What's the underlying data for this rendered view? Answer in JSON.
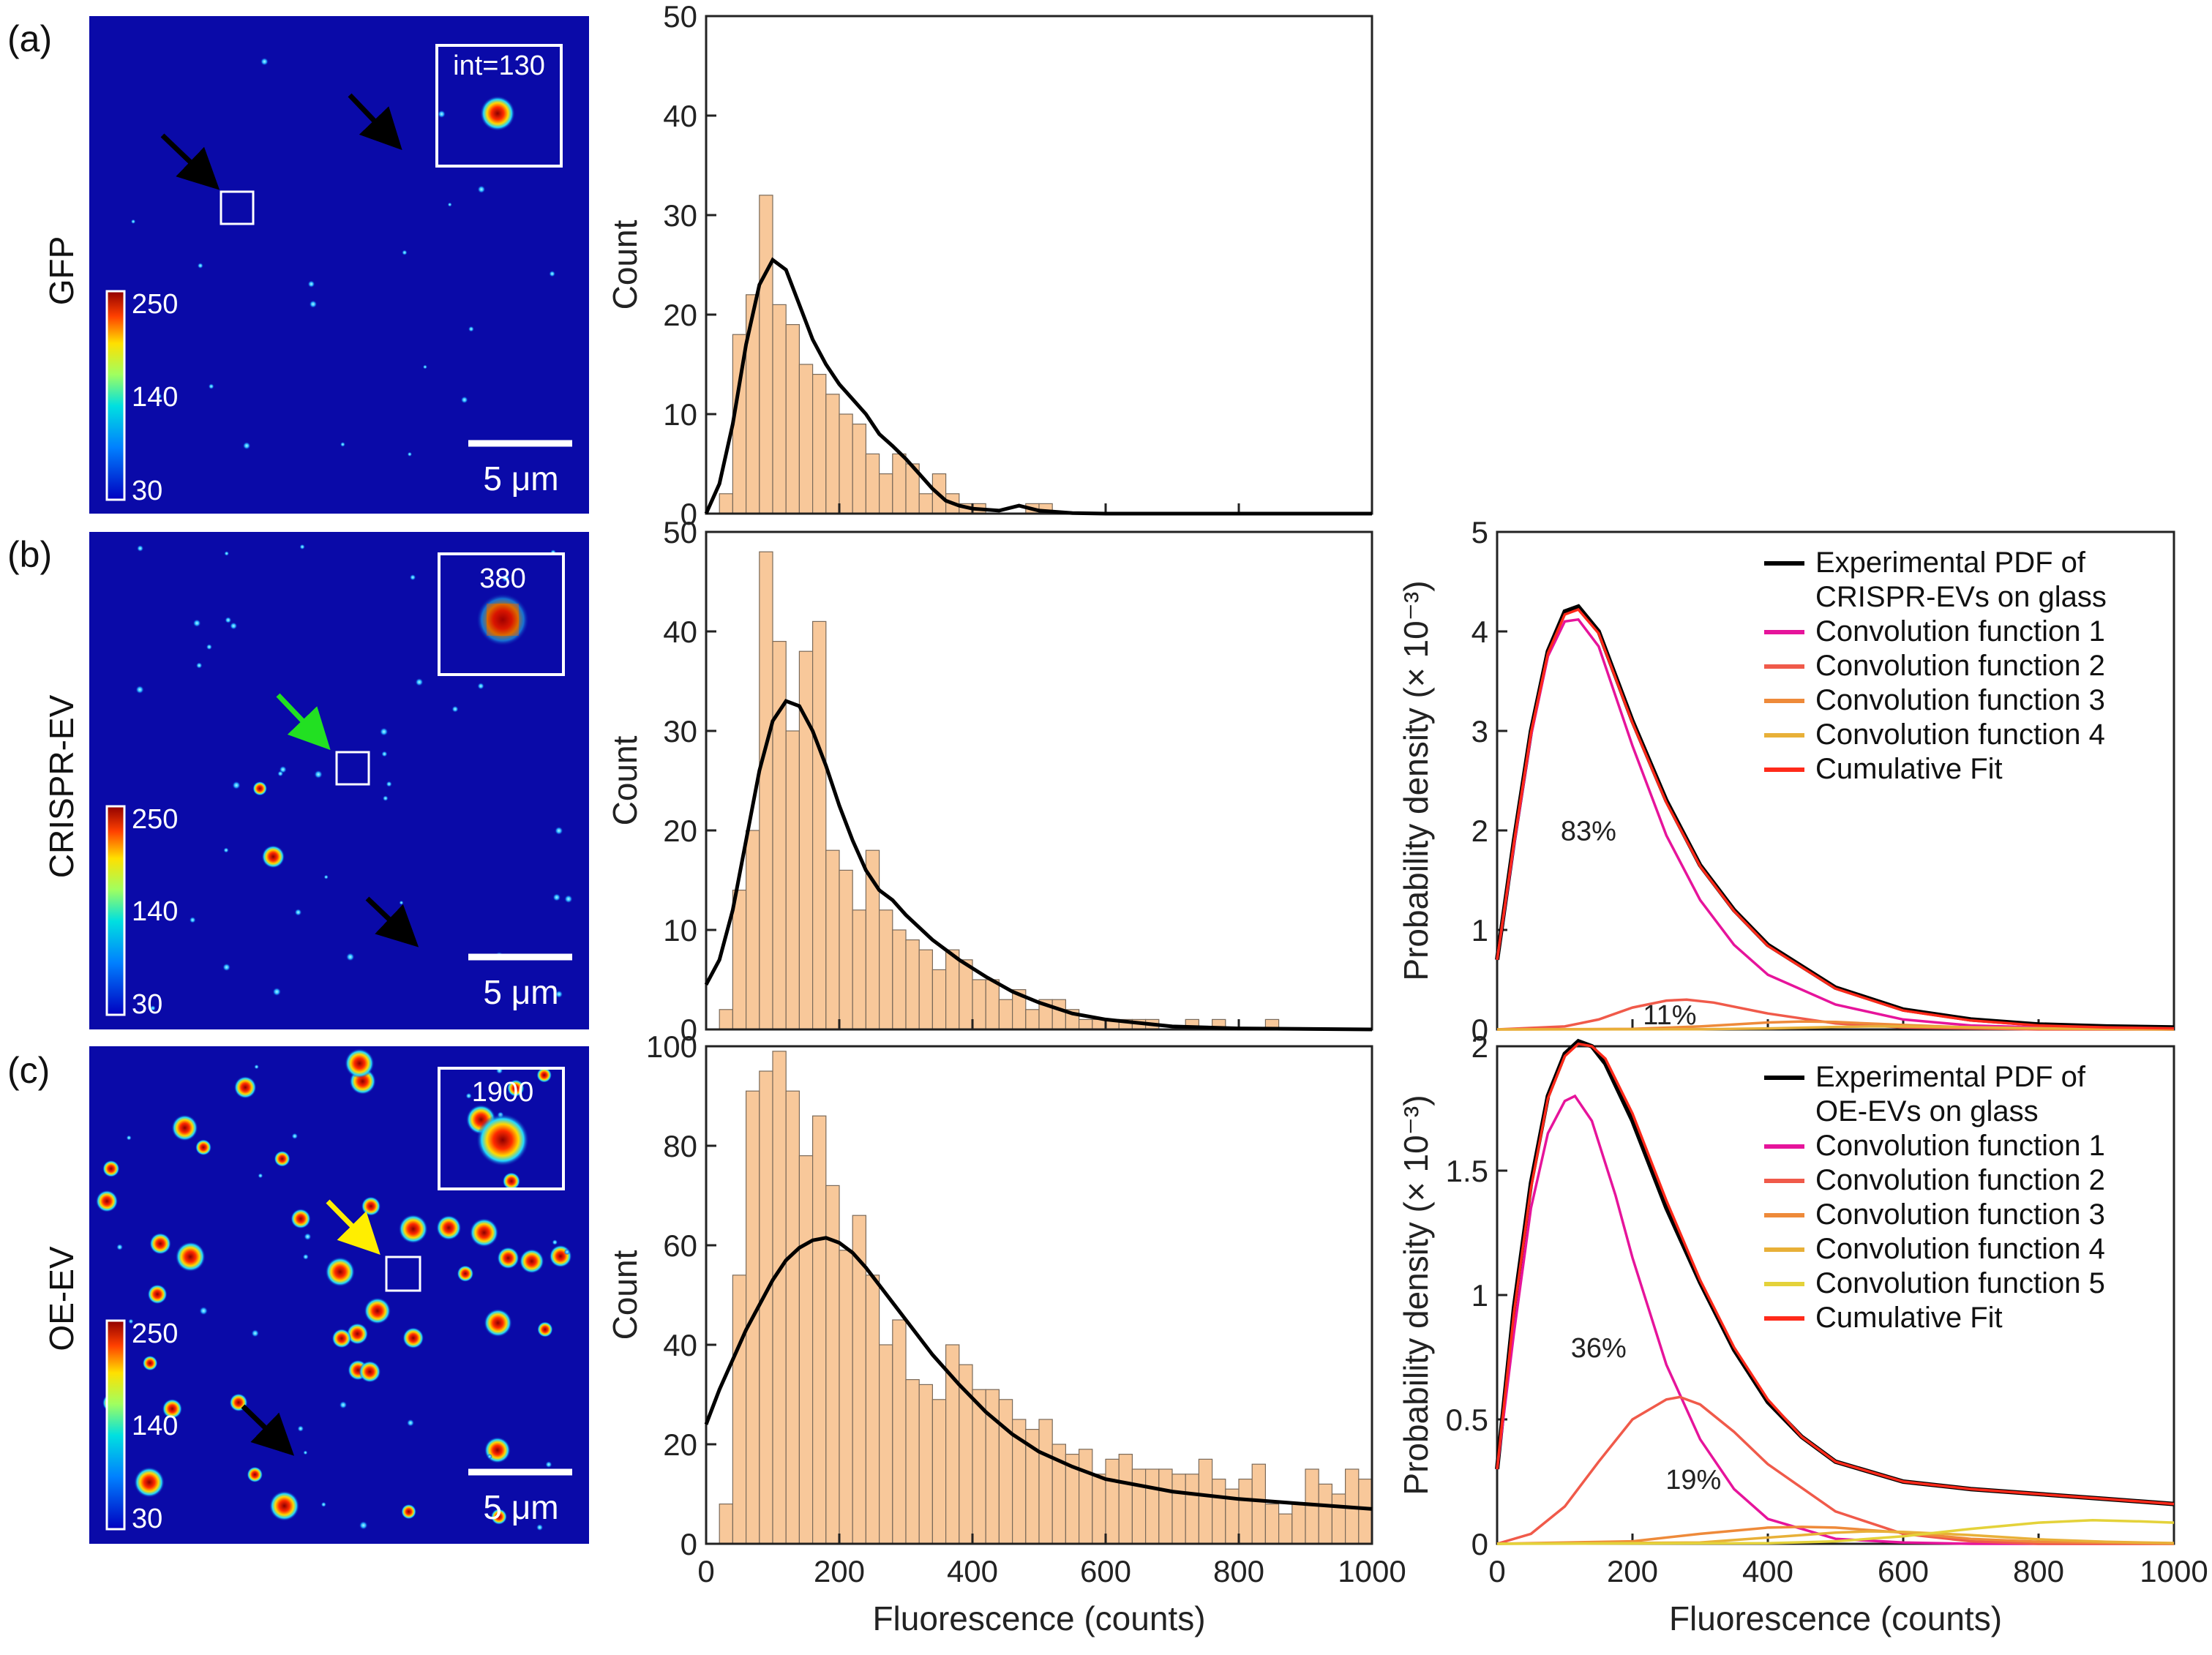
{
  "colors": {
    "bar_fill": "#f8c89a",
    "bar_edge": "#7a6a5a",
    "fit_black": "#000000",
    "conv1": "#e6149b",
    "conv2": "#f05a4a",
    "conv3": "#ee8a3a",
    "conv4": "#e8b038",
    "conv5": "#e4d23a",
    "cumulative": "#ff2a1a",
    "microscopy_bg": "#0a0aa8"
  },
  "rows": [
    {
      "letter": "(a)",
      "label": "GFP",
      "inset_text": "int=130",
      "scale_text": "5 μm",
      "colorbar_ticks": [
        "250",
        "140",
        "30"
      ],
      "arrows": [
        {
          "color": "black"
        },
        {
          "color": "black"
        }
      ]
    },
    {
      "letter": "(b)",
      "label": "CRISPR-EV",
      "inset_text": "380",
      "scale_text": "5 μm",
      "colorbar_ticks": [
        "250",
        "140",
        "30"
      ],
      "arrows": [
        {
          "color": "green"
        },
        {
          "color": "black"
        }
      ]
    },
    {
      "letter": "(c)",
      "label": "OE-EV",
      "inset_text": "1900",
      "scale_text": "5 μm",
      "colorbar_ticks": [
        "250",
        "140",
        "30"
      ],
      "arrows": [
        {
          "color": "yellow"
        },
        {
          "color": "black"
        }
      ]
    }
  ],
  "chart_data": [
    {
      "type": "bar",
      "id": "hist-a",
      "ylabel": "Count",
      "xlabel": "",
      "xlim": [
        0,
        1000
      ],
      "ylim": [
        0,
        50
      ],
      "yticks": [
        0,
        10,
        20,
        30,
        40,
        50
      ],
      "bin_start": 20,
      "bin_width": 20,
      "values": [
        2,
        18,
        22,
        32,
        21,
        19,
        15,
        14,
        12,
        10,
        9,
        6,
        4,
        6,
        5,
        2,
        4,
        2,
        1,
        1,
        0,
        0,
        0,
        1,
        1,
        0,
        0,
        0,
        0,
        0,
        0,
        0,
        0,
        0,
        0,
        0,
        0,
        0,
        0,
        0,
        0,
        0,
        0,
        0,
        0,
        0,
        0,
        0,
        0
      ],
      "fit": {
        "x": [
          0,
          20,
          40,
          60,
          80,
          100,
          120,
          140,
          160,
          180,
          200,
          220,
          240,
          260,
          280,
          300,
          320,
          340,
          360,
          380,
          400,
          440,
          470,
          500,
          550,
          600,
          700,
          800,
          1000
        ],
        "y": [
          0,
          3,
          9,
          17,
          23,
          25.5,
          24.5,
          21,
          17.5,
          15,
          13,
          11.5,
          10,
          8,
          6.8,
          5.5,
          4,
          2.5,
          1.3,
          0.8,
          0.5,
          0.3,
          0.8,
          0.3,
          0.05,
          0,
          0,
          0,
          0
        ]
      }
    },
    {
      "type": "bar",
      "id": "hist-b",
      "ylabel": "Count",
      "xlabel": "",
      "xlim": [
        0,
        1000
      ],
      "ylim": [
        0,
        50
      ],
      "yticks": [
        0,
        10,
        20,
        30,
        40,
        50
      ],
      "bin_start": 20,
      "bin_width": 20,
      "values": [
        2,
        14,
        20,
        48,
        39,
        30,
        38,
        41,
        18,
        16,
        12,
        18,
        12,
        10,
        9,
        8,
        6,
        8,
        7,
        5,
        5,
        3,
        4,
        2,
        3,
        3,
        2,
        1,
        1,
        1,
        1,
        1,
        1,
        0,
        0,
        1,
        0,
        1,
        0,
        0,
        0,
        1,
        0,
        0,
        0,
        0,
        0,
        0,
        0
      ],
      "fit": {
        "x": [
          0,
          20,
          40,
          60,
          80,
          100,
          120,
          140,
          160,
          180,
          200,
          220,
          240,
          260,
          280,
          300,
          340,
          380,
          420,
          460,
          500,
          550,
          600,
          700,
          800,
          1000
        ],
        "y": [
          4.5,
          7,
          12,
          19,
          26,
          31,
          33,
          32.5,
          30,
          26.5,
          22.5,
          19,
          16,
          14,
          13,
          11.5,
          9,
          7,
          5.3,
          3.8,
          2.7,
          1.6,
          1,
          0.3,
          0.1,
          0
        ]
      }
    },
    {
      "type": "bar",
      "id": "hist-c",
      "ylabel": "Count",
      "xlabel": "Fluorescence (counts)",
      "xlim": [
        0,
        1000
      ],
      "ylim": [
        0,
        100
      ],
      "yticks": [
        0,
        20,
        40,
        60,
        80,
        100
      ],
      "xticks": [
        0,
        200,
        400,
        600,
        800,
        1000
      ],
      "bin_start": 20,
      "bin_width": 20,
      "values": [
        8,
        54,
        91,
        95,
        99,
        91,
        78,
        86,
        72,
        59,
        66,
        54,
        40,
        45,
        33,
        32,
        29,
        40,
        36,
        31,
        31,
        29,
        25,
        23,
        25,
        20,
        18,
        19,
        14,
        17,
        18,
        15,
        15,
        15,
        14,
        14,
        17,
        13,
        11,
        13,
        16,
        8,
        6,
        8,
        15,
        12,
        10,
        15,
        13
      ],
      "fit": {
        "x": [
          0,
          20,
          40,
          60,
          80,
          100,
          120,
          140,
          160,
          180,
          200,
          220,
          240,
          260,
          280,
          300,
          340,
          380,
          420,
          460,
          500,
          550,
          600,
          700,
          800,
          900,
          1000
        ],
        "y": [
          24,
          31,
          37,
          43,
          48,
          53,
          57,
          59.5,
          61,
          61.5,
          60.5,
          58.5,
          55.5,
          52,
          48.5,
          45,
          38,
          32,
          26.5,
          22,
          18.5,
          15.5,
          13,
          10.5,
          9,
          8,
          7
        ]
      }
    },
    {
      "type": "line",
      "id": "pdf-b",
      "ylabel": "Probability density (× 10⁻³)",
      "xlabel": "",
      "xlim": [
        0,
        1000
      ],
      "ylim": [
        0,
        5
      ],
      "yticks": [
        0,
        1,
        2,
        3,
        4,
        5
      ],
      "legend_position": "top-right",
      "annotations": [
        {
          "text": "83%",
          "x": 135,
          "y": 1.9
        },
        {
          "text": "11%",
          "x": 255,
          "y": 0.05
        }
      ],
      "series": [
        {
          "name": "Experimental PDF of CRISPR-EVs on glass",
          "color_key": "fit_black",
          "x": [
            0,
            25,
            50,
            75,
            100,
            120,
            150,
            175,
            200,
            250,
            300,
            350,
            400,
            500,
            600,
            700,
            800,
            900,
            1000
          ],
          "y": [
            0.7,
            1.9,
            3.0,
            3.8,
            4.2,
            4.25,
            4.0,
            3.55,
            3.1,
            2.3,
            1.65,
            1.2,
            0.85,
            0.42,
            0.2,
            0.1,
            0.05,
            0.03,
            0.02
          ]
        },
        {
          "name": "Convolution function 1",
          "color_key": "conv1",
          "x": [
            0,
            25,
            50,
            75,
            100,
            120,
            150,
            175,
            200,
            250,
            300,
            350,
            400,
            500,
            600,
            700,
            800,
            1000
          ],
          "y": [
            0.7,
            1.85,
            2.95,
            3.75,
            4.1,
            4.12,
            3.85,
            3.35,
            2.85,
            1.95,
            1.3,
            0.85,
            0.55,
            0.25,
            0.1,
            0.04,
            0.02,
            0
          ]
        },
        {
          "name": "Convolution function 2",
          "color_key": "conv2",
          "x": [
            0,
            100,
            150,
            200,
            250,
            280,
            320,
            400,
            500,
            600,
            700,
            800,
            1000
          ],
          "y": [
            0,
            0.03,
            0.1,
            0.22,
            0.29,
            0.3,
            0.27,
            0.16,
            0.06,
            0.02,
            0.01,
            0,
            0
          ]
        },
        {
          "name": "Convolution function 3",
          "color_key": "conv3",
          "x": [
            0,
            200,
            300,
            400,
            450,
            500,
            600,
            700,
            800,
            1000
          ],
          "y": [
            0,
            0.005,
            0.03,
            0.07,
            0.08,
            0.075,
            0.045,
            0.02,
            0.008,
            0
          ]
        },
        {
          "name": "Convolution function 4",
          "color_key": "conv4",
          "x": [
            0,
            300,
            400,
            500,
            550,
            600,
            700,
            800,
            900,
            1000
          ],
          "y": [
            0,
            0.002,
            0.01,
            0.025,
            0.03,
            0.03,
            0.022,
            0.012,
            0.005,
            0.002
          ]
        },
        {
          "name": "Cumulative Fit",
          "color_key": "cumulative",
          "x": [
            0,
            25,
            50,
            75,
            100,
            120,
            150,
            175,
            200,
            250,
            300,
            350,
            400,
            500,
            600,
            700,
            800,
            900,
            1000
          ],
          "y": [
            0.7,
            1.88,
            2.98,
            3.78,
            4.17,
            4.22,
            3.98,
            3.53,
            3.08,
            2.28,
            1.64,
            1.19,
            0.84,
            0.41,
            0.19,
            0.09,
            0.04,
            0.02,
            0.01
          ]
        }
      ]
    },
    {
      "type": "line",
      "id": "pdf-c",
      "ylabel": "Probability density (× 10⁻³)",
      "xlabel": "Fluorescence (counts)",
      "xlim": [
        0,
        1000
      ],
      "ylim": [
        0,
        2
      ],
      "yticks": [
        0,
        0.5,
        1,
        1.5,
        2
      ],
      "ytick_labels": [
        "0",
        "0.5",
        "1",
        "1.5",
        "2"
      ],
      "xticks": [
        0,
        200,
        400,
        600,
        800,
        1000
      ],
      "legend_position": "top-right",
      "annotations": [
        {
          "text": "36%",
          "x": 150,
          "y": 0.75
        },
        {
          "text": "19%",
          "x": 290,
          "y": 0.22
        }
      ],
      "series": [
        {
          "name": "Experimental PDF of OE-EVs on glass",
          "color_key": "fit_black",
          "x": [
            0,
            25,
            50,
            75,
            100,
            120,
            140,
            160,
            200,
            250,
            300,
            350,
            400,
            450,
            500,
            600,
            700,
            800,
            900,
            1000
          ],
          "y": [
            0.3,
            0.95,
            1.45,
            1.8,
            1.97,
            2.02,
            2.0,
            1.93,
            1.7,
            1.35,
            1.05,
            0.78,
            0.57,
            0.43,
            0.33,
            0.25,
            0.22,
            0.2,
            0.18,
            0.16
          ]
        },
        {
          "name": "Convolution function 1",
          "color_key": "conv1",
          "x": [
            0,
            25,
            50,
            75,
            100,
            115,
            140,
            175,
            200,
            250,
            300,
            350,
            400,
            500,
            600,
            700,
            1000
          ],
          "y": [
            0.3,
            0.85,
            1.35,
            1.65,
            1.78,
            1.8,
            1.7,
            1.4,
            1.15,
            0.72,
            0.42,
            0.22,
            0.1,
            0.02,
            0.005,
            0,
            0
          ]
        },
        {
          "name": "Convolution function 2",
          "color_key": "conv2",
          "x": [
            0,
            50,
            100,
            150,
            200,
            250,
            270,
            300,
            350,
            400,
            500,
            600,
            700,
            800,
            1000
          ],
          "y": [
            0,
            0.04,
            0.15,
            0.33,
            0.5,
            0.58,
            0.59,
            0.56,
            0.45,
            0.32,
            0.13,
            0.04,
            0.01,
            0,
            0
          ]
        },
        {
          "name": "Convolution function 3",
          "color_key": "conv3",
          "x": [
            0,
            200,
            300,
            400,
            450,
            500,
            600,
            700,
            800,
            1000
          ],
          "y": [
            0,
            0.01,
            0.04,
            0.065,
            0.068,
            0.065,
            0.045,
            0.02,
            0.008,
            0
          ]
        },
        {
          "name": "Convolution function 4",
          "color_key": "conv4",
          "x": [
            0,
            300,
            400,
            500,
            550,
            600,
            700,
            800,
            900,
            1000
          ],
          "y": [
            0,
            0.005,
            0.025,
            0.045,
            0.05,
            0.048,
            0.035,
            0.018,
            0.008,
            0.003
          ]
        },
        {
          "name": "Convolution function 5",
          "color_key": "conv5",
          "x": [
            0,
            400,
            500,
            600,
            700,
            800,
            880,
            950,
            1000
          ],
          "y": [
            0,
            0.002,
            0.01,
            0.03,
            0.06,
            0.085,
            0.095,
            0.09,
            0.085
          ]
        },
        {
          "name": "Cumulative Fit",
          "color_key": "cumulative",
          "x": [
            0,
            25,
            50,
            75,
            100,
            120,
            140,
            160,
            200,
            250,
            300,
            350,
            400,
            450,
            500,
            600,
            700,
            800,
            900,
            1000
          ],
          "y": [
            0.3,
            0.93,
            1.43,
            1.79,
            1.96,
            2.01,
            2.0,
            1.95,
            1.73,
            1.38,
            1.06,
            0.79,
            0.58,
            0.43,
            0.33,
            0.25,
            0.22,
            0.2,
            0.18,
            0.16
          ]
        }
      ]
    }
  ]
}
